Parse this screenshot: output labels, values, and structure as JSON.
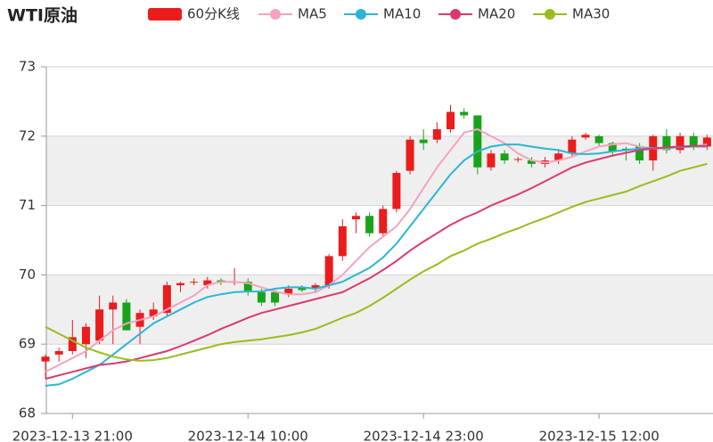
{
  "chart_data": {
    "type": "candlestick",
    "title": "WTI原油",
    "categories": [
      null,
      null,
      "2023-12-13 21:00",
      null,
      null,
      null,
      null,
      null,
      null,
      null,
      null,
      null,
      null,
      null,
      null,
      "2023-12-14 10:00",
      null,
      null,
      null,
      null,
      null,
      null,
      null,
      null,
      null,
      null,
      null,
      null,
      "2023-12-14 23:00",
      null,
      null,
      null,
      null,
      null,
      null,
      null,
      null,
      null,
      null,
      null,
      null,
      "2023-12-15 12:00",
      null,
      null,
      null,
      null,
      null,
      null,
      null,
      null
    ],
    "ylim": [
      68,
      73
    ],
    "yticks": [
      68,
      69,
      70,
      71,
      72,
      73
    ],
    "grid": true,
    "series": [
      {
        "name": "60分K线",
        "type": "candlestick",
        "color": "#eb1c1c",
        "down_color": "#1aa31a",
        "open": [
          68.75,
          68.85,
          68.9,
          69.0,
          69.05,
          69.5,
          69.6,
          69.25,
          69.4,
          69.45,
          69.85,
          69.9,
          69.85,
          69.92,
          69.9,
          69.9,
          69.75,
          69.75,
          69.72,
          69.82,
          69.8,
          69.85,
          70.27,
          70.8,
          70.85,
          70.6,
          70.95,
          71.5,
          71.95,
          71.95,
          72.1,
          72.35,
          72.3,
          71.55,
          71.75,
          71.67,
          71.65,
          71.6,
          71.65,
          71.75,
          71.98,
          72.0,
          71.9,
          71.82,
          71.85,
          71.65,
          72.0,
          71.8,
          72.0,
          71.85
        ],
        "close": [
          68.82,
          68.9,
          69.1,
          69.25,
          69.5,
          69.6,
          69.2,
          69.45,
          69.5,
          69.85,
          69.88,
          69.9,
          69.92,
          69.9,
          69.9,
          69.75,
          69.6,
          69.6,
          69.8,
          69.78,
          69.85,
          70.27,
          70.7,
          70.85,
          70.6,
          70.95,
          71.47,
          71.95,
          71.9,
          72.1,
          72.35,
          72.3,
          71.55,
          71.75,
          71.65,
          71.67,
          71.6,
          71.65,
          71.75,
          71.95,
          72.02,
          71.9,
          71.78,
          71.8,
          71.65,
          72.0,
          71.8,
          72.0,
          71.85,
          71.98
        ],
        "low": [
          68.5,
          68.75,
          68.85,
          68.8,
          69.0,
          69.0,
          69.2,
          69.0,
          69.35,
          69.4,
          69.75,
          69.85,
          69.8,
          69.85,
          69.85,
          69.7,
          69.55,
          69.55,
          69.68,
          69.75,
          69.75,
          69.8,
          70.2,
          70.6,
          70.55,
          70.55,
          70.9,
          71.45,
          71.8,
          71.9,
          72.05,
          72.25,
          71.45,
          71.5,
          71.6,
          71.62,
          71.55,
          71.55,
          71.6,
          71.7,
          71.95,
          71.85,
          71.72,
          71.65,
          71.6,
          71.5,
          71.75,
          71.75,
          71.8,
          71.8
        ],
        "high": [
          68.85,
          68.95,
          69.35,
          69.3,
          69.7,
          69.7,
          69.65,
          69.5,
          69.6,
          69.9,
          69.9,
          69.95,
          69.97,
          69.95,
          70.1,
          69.95,
          69.8,
          69.78,
          69.85,
          69.85,
          69.88,
          70.3,
          70.8,
          70.9,
          70.9,
          71.0,
          71.5,
          72.0,
          72.1,
          72.2,
          72.45,
          72.4,
          72.3,
          71.8,
          71.8,
          71.7,
          71.7,
          71.7,
          71.8,
          72.0,
          72.05,
          72.02,
          71.92,
          71.85,
          71.9,
          72.02,
          72.1,
          72.05,
          72.05,
          72.02
        ]
      },
      {
        "name": "MA5",
        "type": "line",
        "color": "#f4a3bd",
        "values": [
          68.6,
          68.7,
          68.8,
          68.9,
          69.05,
          69.2,
          69.3,
          69.35,
          69.4,
          69.5,
          69.6,
          69.7,
          69.85,
          69.9,
          69.9,
          69.88,
          69.82,
          69.76,
          69.72,
          69.72,
          69.75,
          69.85,
          70.0,
          70.2,
          70.4,
          70.55,
          70.7,
          70.95,
          71.25,
          71.55,
          71.8,
          72.05,
          72.1,
          72.0,
          71.9,
          71.75,
          71.65,
          71.62,
          71.65,
          71.7,
          71.78,
          71.85,
          71.88,
          71.9,
          71.85,
          71.82,
          71.82,
          71.85,
          71.85,
          71.88
        ]
      },
      {
        "name": "MA10",
        "type": "line",
        "color": "#29b6d6",
        "values": [
          68.4,
          68.42,
          68.5,
          68.6,
          68.7,
          68.85,
          69.0,
          69.15,
          69.3,
          69.4,
          69.5,
          69.6,
          69.68,
          69.72,
          69.75,
          69.76,
          69.76,
          69.8,
          69.82,
          69.82,
          69.8,
          69.85,
          69.9,
          70.0,
          70.1,
          70.25,
          70.45,
          70.7,
          70.95,
          71.2,
          71.45,
          71.65,
          71.78,
          71.85,
          71.88,
          71.88,
          71.85,
          71.82,
          71.8,
          71.75,
          71.74,
          71.75,
          71.78,
          71.8,
          71.82,
          71.83,
          71.83,
          71.84,
          71.85,
          71.85
        ]
      },
      {
        "name": "MA20",
        "type": "line",
        "color": "#d93a6e",
        "values": [
          68.5,
          68.55,
          68.6,
          68.65,
          68.7,
          68.72,
          68.75,
          68.8,
          68.85,
          68.9,
          68.97,
          69.05,
          69.13,
          69.22,
          69.3,
          69.38,
          69.45,
          69.5,
          69.55,
          69.6,
          69.65,
          69.7,
          69.75,
          69.85,
          69.95,
          70.07,
          70.2,
          70.35,
          70.48,
          70.6,
          70.72,
          70.82,
          70.9,
          71.0,
          71.08,
          71.16,
          71.25,
          71.35,
          71.45,
          71.55,
          71.62,
          71.67,
          71.72,
          71.76,
          71.8,
          71.82,
          71.84,
          71.85,
          71.86,
          71.86
        ]
      },
      {
        "name": "MA30",
        "type": "line",
        "color": "#97bd1e",
        "values": [
          69.25,
          69.15,
          69.05,
          68.95,
          68.88,
          68.82,
          68.78,
          68.76,
          68.77,
          68.8,
          68.85,
          68.9,
          68.95,
          69.0,
          69.03,
          69.05,
          69.07,
          69.1,
          69.13,
          69.17,
          69.22,
          69.3,
          69.38,
          69.45,
          69.55,
          69.67,
          69.8,
          69.93,
          70.05,
          70.15,
          70.27,
          70.35,
          70.45,
          70.52,
          70.6,
          70.67,
          70.75,
          70.82,
          70.9,
          70.98,
          71.05,
          71.1,
          71.15,
          71.2,
          71.28,
          71.35,
          71.42,
          71.5,
          71.55,
          71.6
        ]
      }
    ]
  }
}
